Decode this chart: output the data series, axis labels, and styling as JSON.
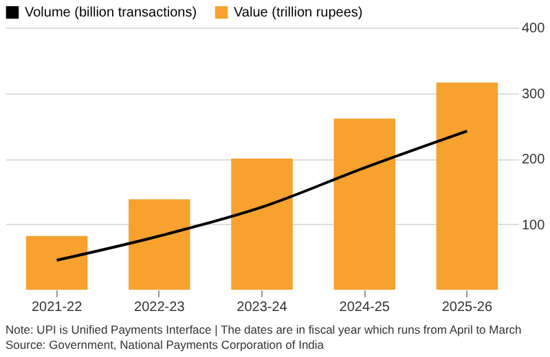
{
  "chart_data": {
    "type": "bar",
    "categories": [
      "2021-22",
      "2022-23",
      "2023-24",
      "2024-25",
      "2025-26"
    ],
    "series": [
      {
        "name": "Volume (billion transactions)",
        "type": "line",
        "color": "#000000",
        "values": [
          45,
          82,
          126,
          186,
          242
        ]
      },
      {
        "name": "Value (trillion rupees)",
        "color": "#f7a12f",
        "values": [
          82,
          138,
          200,
          261,
          316
        ]
      }
    ],
    "ylim": [
      0,
      400
    ],
    "yticks": [
      100,
      200,
      300,
      400
    ],
    "grid": "y",
    "legend": "top left",
    "annotations": [
      "Note: UPI is Unified Payments Interface | The dates are in fiscal year which runs from April to March",
      "Source: Government, National Payments Corporation of India"
    ]
  }
}
